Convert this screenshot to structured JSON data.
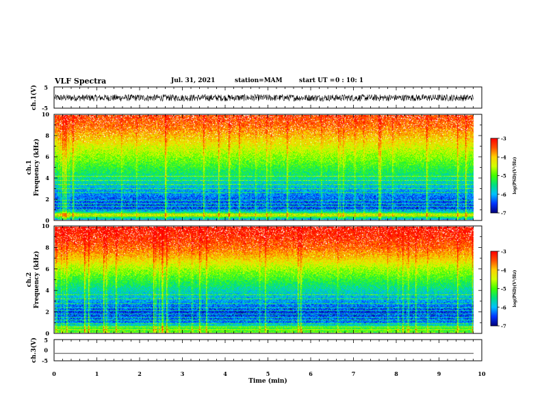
{
  "header": {
    "title": "VLF Spectra",
    "date": "Jul. 31, 2021",
    "station": "station=MAM",
    "start_label": "start UT =",
    "start_time": "0 : 10: 1"
  },
  "colors": {
    "colormap": [
      "#00007a",
      "#0033ff",
      "#00c0ff",
      "#00e080",
      "#40ff00",
      "#d0ff00",
      "#ffd000",
      "#ff5000",
      "#ff0000"
    ],
    "colormap_low": "#ffffff",
    "trace": "#000000"
  },
  "chart_data": [
    {
      "type": "line",
      "id": "ch1-waveform",
      "ylabel": "ch.1(V)",
      "ylim": [
        -5,
        5
      ],
      "yticks": [
        "5",
        "-5"
      ],
      "x_range": [
        0,
        10
      ],
      "note_values": "dense broadband waveform, amplitude roughly -1.7 to +1.5 V",
      "approx_amplitude": [
        -1.7,
        1.5
      ]
    },
    {
      "type": "heatmap",
      "id": "ch1-spectrogram",
      "ylabel": "ch.1 Frequency (kHz)",
      "ylim": [
        0,
        10
      ],
      "yticks": [
        "0",
        "2",
        "4",
        "6",
        "8",
        "10"
      ],
      "x_range": [
        0,
        10
      ],
      "x_data_end": 9.8,
      "colorbar": {
        "label": "log(PSD)(V²/Hz)",
        "range": [
          -7,
          -3
        ],
        "ticks": [
          "-3",
          "-4",
          "-5",
          "-6",
          "-7"
        ]
      },
      "profile_khz_to_logpsd": [
        [
          0,
          -6.3
        ],
        [
          0.5,
          -4.6
        ],
        [
          1,
          -6.5
        ],
        [
          2,
          -6.4
        ],
        [
          3,
          -6.0
        ],
        [
          4,
          -5.6
        ],
        [
          5,
          -5.2
        ],
        [
          6,
          -4.8
        ],
        [
          7,
          -4.4
        ],
        [
          8,
          -4.0
        ],
        [
          9,
          -3.6
        ],
        [
          10,
          -3.4
        ]
      ],
      "horizontal_lines_khz": [
        0.4,
        0.6,
        1.0,
        1.3,
        1.6,
        1.9,
        2.6,
        3.0,
        3.4,
        3.8,
        4.2
      ]
    },
    {
      "type": "heatmap",
      "id": "ch2-spectrogram",
      "ylabel": "ch.2 Frequency (kHz)",
      "ylim": [
        0,
        10
      ],
      "yticks": [
        "0",
        "2",
        "4",
        "6",
        "8",
        "10"
      ],
      "x_range": [
        0,
        10
      ],
      "x_data_end": 9.8,
      "colorbar": {
        "label": "log(PSD)(V²/Hz)",
        "range": [
          -7,
          -3
        ],
        "ticks": [
          "-3",
          "-4",
          "-5",
          "-6",
          "-7"
        ]
      },
      "profile_khz_to_logpsd": [
        [
          0,
          -5.0
        ],
        [
          0.5,
          -5.2
        ],
        [
          1,
          -6.3
        ],
        [
          2,
          -6.6
        ],
        [
          3,
          -6.1
        ],
        [
          4,
          -5.7
        ],
        [
          5,
          -5.2
        ],
        [
          6,
          -4.7
        ],
        [
          7,
          -4.1
        ],
        [
          8,
          -3.6
        ],
        [
          9,
          -3.3
        ],
        [
          10,
          -3.1
        ]
      ],
      "horizontal_lines_khz": [
        0.3,
        0.6,
        0.9,
        1.2,
        1.5,
        1.8,
        2.1,
        2.4,
        2.8,
        3.2,
        3.6
      ]
    },
    {
      "type": "line",
      "id": "ch3-waveform",
      "ylabel": "ch.3(V)",
      "ylim": [
        -5,
        5
      ],
      "yticks": [
        "5",
        "0",
        "-5"
      ],
      "x_range": [
        0,
        10
      ],
      "constant_value": -1.5
    }
  ],
  "x_axis": {
    "label": "Time (min)",
    "ticks": [
      "0",
      "1",
      "2",
      "3",
      "4",
      "5",
      "6",
      "7",
      "8",
      "9",
      "10"
    ]
  }
}
